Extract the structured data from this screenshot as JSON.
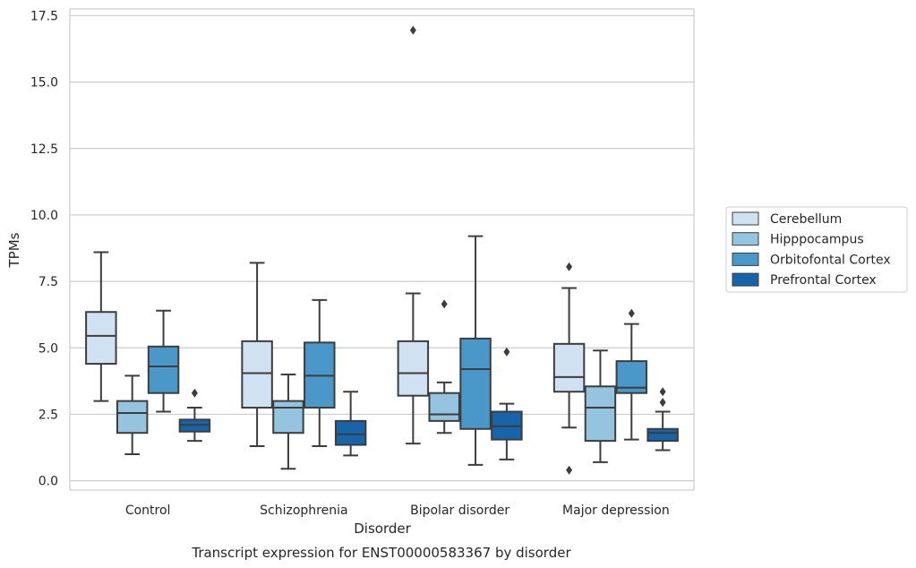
{
  "chart_data": {
    "type": "boxplot",
    "title": "",
    "caption": "Transcript expression for ENST00000583367 by disorder",
    "xlabel": "Disorder",
    "ylabel": "TPMs",
    "ylim": [
      -0.35,
      17.75
    ],
    "yticks": [
      0.0,
      2.5,
      5.0,
      7.5,
      10.0,
      12.5,
      15.0,
      17.5
    ],
    "ytick_labels": [
      "0.0",
      "2.5",
      "5.0",
      "7.5",
      "10.0",
      "12.5",
      "15.0",
      "17.5"
    ],
    "grid": "horizontal",
    "legend_position": "right",
    "categories": [
      "Control",
      "Schizophrenia",
      "Bipolar disorder",
      "Major depression"
    ],
    "series": [
      {
        "name": "Cerebellum",
        "color": "#d0e1f2",
        "boxes": [
          {
            "whisker_low": 3.0,
            "q1": 4.4,
            "median": 5.45,
            "q3": 6.35,
            "whisker_high": 8.6,
            "outliers": []
          },
          {
            "whisker_low": 1.3,
            "q1": 2.75,
            "median": 4.05,
            "q3": 5.25,
            "whisker_high": 8.2,
            "outliers": []
          },
          {
            "whisker_low": 1.4,
            "q1": 3.2,
            "median": 4.05,
            "q3": 5.25,
            "whisker_high": 7.05,
            "outliers": [
              16.95
            ]
          },
          {
            "whisker_low": 2.0,
            "q1": 3.35,
            "median": 3.9,
            "q3": 5.15,
            "whisker_high": 7.25,
            "outliers": [
              8.05,
              0.4
            ]
          }
        ]
      },
      {
        "name": "Hipppocampus",
        "color": "#94c4df",
        "boxes": [
          {
            "whisker_low": 1.0,
            "q1": 1.8,
            "median": 2.55,
            "q3": 3.0,
            "whisker_high": 3.95,
            "outliers": []
          },
          {
            "whisker_low": 0.45,
            "q1": 1.8,
            "median": 2.75,
            "q3": 3.0,
            "whisker_high": 4.0,
            "outliers": []
          },
          {
            "whisker_low": 1.8,
            "q1": 2.25,
            "median": 2.5,
            "q3": 3.3,
            "whisker_high": 3.7,
            "outliers": [
              6.65
            ]
          },
          {
            "whisker_low": 0.7,
            "q1": 1.5,
            "median": 2.75,
            "q3": 3.55,
            "whisker_high": 4.9,
            "outliers": []
          }
        ]
      },
      {
        "name": "Orbitofontal Cortex",
        "color": "#4a98c9",
        "boxes": [
          {
            "whisker_low": 2.6,
            "q1": 3.3,
            "median": 4.3,
            "q3": 5.05,
            "whisker_high": 6.4,
            "outliers": []
          },
          {
            "whisker_low": 1.3,
            "q1": 2.75,
            "median": 3.95,
            "q3": 5.2,
            "whisker_high": 6.8,
            "outliers": []
          },
          {
            "whisker_low": 0.6,
            "q1": 1.95,
            "median": 4.2,
            "q3": 5.35,
            "whisker_high": 9.2,
            "outliers": []
          },
          {
            "whisker_low": 1.55,
            "q1": 3.3,
            "median": 3.5,
            "q3": 4.5,
            "whisker_high": 5.9,
            "outliers": [
              6.3
            ]
          }
        ]
      },
      {
        "name": "Prefrontal Cortex",
        "color": "#1764ab",
        "boxes": [
          {
            "whisker_low": 1.5,
            "q1": 1.85,
            "median": 2.1,
            "q3": 2.3,
            "whisker_high": 2.75,
            "outliers": [
              3.3
            ]
          },
          {
            "whisker_low": 0.95,
            "q1": 1.35,
            "median": 1.75,
            "q3": 2.25,
            "whisker_high": 3.35,
            "outliers": []
          },
          {
            "whisker_low": 0.8,
            "q1": 1.55,
            "median": 2.05,
            "q3": 2.6,
            "whisker_high": 2.9,
            "outliers": [
              4.85
            ]
          },
          {
            "whisker_low": 1.15,
            "q1": 1.5,
            "median": 1.8,
            "q3": 1.95,
            "whisker_high": 2.6,
            "outliers": [
              3.35,
              2.95
            ]
          }
        ]
      }
    ]
  }
}
